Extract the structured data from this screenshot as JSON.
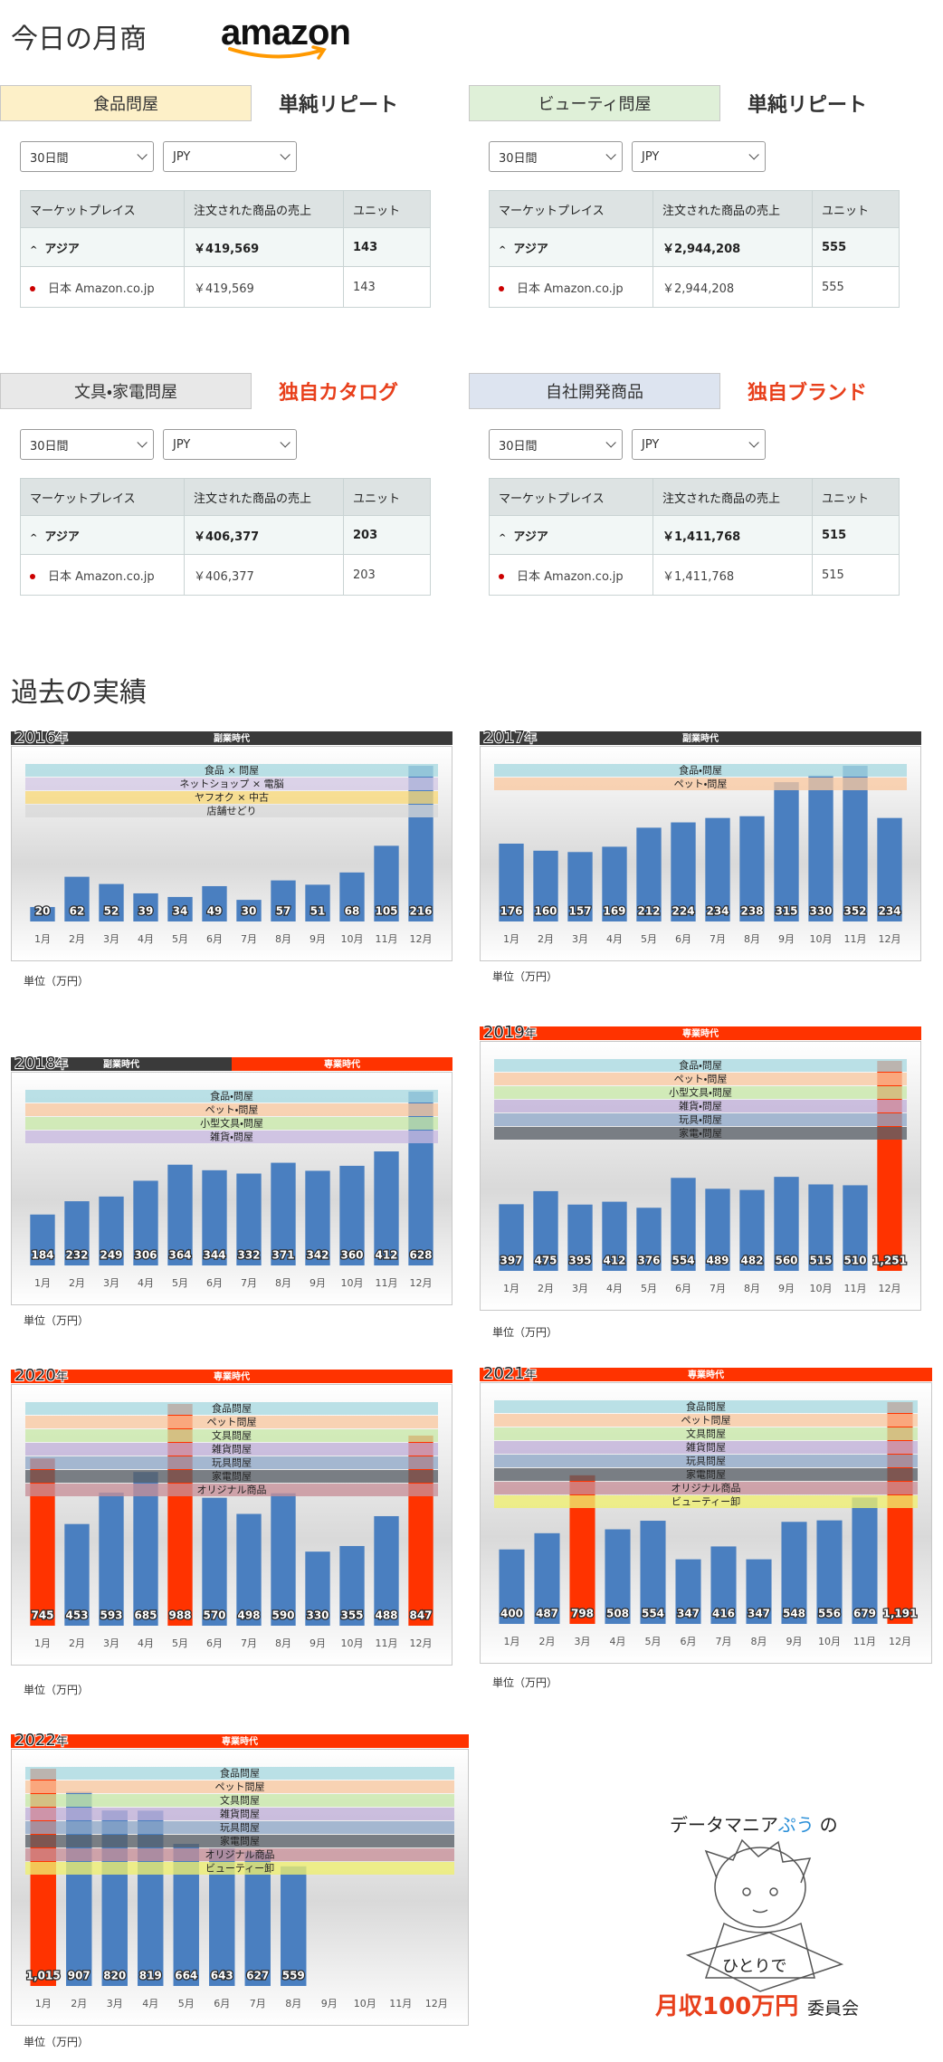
{
  "header": {
    "title": "今日の月商",
    "logo": "amazon"
  },
  "panels": [
    {
      "label": "食品問屋",
      "label_color": "#fdf0c8",
      "tag": "単純リピート",
      "tag_color": "#333333",
      "period": "30日間",
      "currency": "JPY",
      "columns": [
        "マーケットプレイス",
        "注文された商品の売上",
        "ユニット"
      ],
      "rows": [
        [
          "アジア",
          "￥419,569",
          "143"
        ],
        [
          "日本 Amazon.co.jp",
          "￥419,569",
          "143"
        ]
      ]
    },
    {
      "label": "ビューティ問屋",
      "label_color": "#dff0d8",
      "tag": "単純リピート",
      "tag_color": "#333333",
      "period": "30日間",
      "currency": "JPY",
      "columns": [
        "マーケットプレイス",
        "注文された商品の売上",
        "ユニット"
      ],
      "rows": [
        [
          "アジア",
          "￥2,944,208",
          "555"
        ],
        [
          "日本 Amazon.co.jp",
          "￥2,944,208",
          "555"
        ]
      ]
    },
    {
      "label": "文具・家電問屋",
      "label_color": "#e8e8e8",
      "tag": "独自カタログ",
      "tag_color": "#e8401c",
      "period": "30日間",
      "currency": "JPY",
      "columns": [
        "マーケットプレイス",
        "注文された商品の売上",
        "ユニット"
      ],
      "rows": [
        [
          "アジア",
          "￥406,377",
          "203"
        ],
        [
          "日本 Amazon.co.jp",
          "￥406,377",
          "203"
        ]
      ]
    },
    {
      "label": "自社開発商品",
      "label_color": "#dde4f0",
      "tag": "独自ブランド",
      "tag_color": "#e8401c",
      "period": "30日間",
      "currency": "JPY",
      "columns": [
        "マーケットプレイス",
        "注文された商品の売上",
        "ユニット"
      ],
      "rows": [
        [
          "アジア",
          "￥1,411,768",
          "515"
        ],
        [
          "日本 Amazon.co.jp",
          "￥1,411,768",
          "515"
        ]
      ]
    }
  ],
  "history": {
    "title": "過去の実績",
    "unit": "単位（万円）",
    "charts": [
      {
        "type": "bar",
        "year": "2016",
        "suffix": "年",
        "eras": [
          {
            "label": "副業時代",
            "color": "#3a3a3a"
          }
        ],
        "bands": [
          {
            "label": "食品 × 問屋",
            "color": "#a8d8e0"
          },
          {
            "label": "ネットショップ × 電脳",
            "color": "#d4c8e4"
          },
          {
            "label": "ヤフオク × 中古",
            "color": "#f8d878"
          },
          {
            "label": "店舗せどり",
            "color": "#d8d8d8"
          }
        ],
        "categories": [
          "1月",
          "2月",
          "3月",
          "4月",
          "5月",
          "6月",
          "7月",
          "8月",
          "9月",
          "10月",
          "11月",
          "12月"
        ],
        "values": [
          20,
          62,
          52,
          39,
          34,
          49,
          30,
          57,
          51,
          68,
          105,
          216
        ],
        "color": "#4a7fc0"
      },
      {
        "type": "bar",
        "year": "2017",
        "suffix": "年",
        "eras": [
          {
            "label": "副業時代",
            "color": "#3a3a3a"
          }
        ],
        "bands": [
          {
            "label": "食品・問屋",
            "color": "#a8d8e0"
          },
          {
            "label": "ペット・問屋",
            "color": "#f8c8a0"
          }
        ],
        "categories": [
          "1月",
          "2月",
          "3月",
          "4月",
          "5月",
          "6月",
          "7月",
          "8月",
          "9月",
          "10月",
          "11月",
          "12月"
        ],
        "values": [
          176,
          160,
          157,
          169,
          212,
          224,
          234,
          238,
          315,
          330,
          352,
          234
        ],
        "color": "#4a7fc0"
      },
      {
        "type": "bar",
        "year": "2018",
        "suffix": "年",
        "eras": [
          {
            "label": "副業時代",
            "color": "#3a3a3a"
          },
          {
            "label": "専業時代",
            "color": "#ff3300"
          }
        ],
        "bands": [
          {
            "label": "食品・問屋",
            "color": "#a8d8e0"
          },
          {
            "label": "ペット・問屋",
            "color": "#f8c8a0"
          },
          {
            "label": "小型文具・問屋",
            "color": "#c8e8a8"
          },
          {
            "label": "雑貨・問屋",
            "color": "#c8b8e0"
          }
        ],
        "categories": [
          "1月",
          "2月",
          "3月",
          "4月",
          "5月",
          "6月",
          "7月",
          "8月",
          "9月",
          "10月",
          "11月",
          "12月"
        ],
        "values": [
          184,
          232,
          249,
          306,
          364,
          344,
          332,
          371,
          342,
          360,
          412,
          628
        ],
        "color": "#4a7fc0"
      },
      {
        "type": "bar",
        "year": "2019",
        "suffix": "年",
        "eras": [
          {
            "label": "専業時代",
            "color": "#ff3300"
          }
        ],
        "bands": [
          {
            "label": "食品・問屋",
            "color": "#a8d8e0"
          },
          {
            "label": "ペット・問屋",
            "color": "#f8c8a0"
          },
          {
            "label": "小型文具・問屋",
            "color": "#c8e8a8"
          },
          {
            "label": "雑貨・問屋",
            "color": "#c0b0d8"
          },
          {
            "label": "玩具・問屋",
            "color": "#8fa8c8"
          },
          {
            "label": "家電・問屋",
            "color": "#5a6068"
          }
        ],
        "categories": [
          "1月",
          "2月",
          "3月",
          "4月",
          "5月",
          "6月",
          "7月",
          "8月",
          "9月",
          "10月",
          "11月",
          "12月"
        ],
        "values": [
          397,
          475,
          395,
          412,
          376,
          554,
          489,
          482,
          560,
          515,
          510,
          1251
        ],
        "value_labels": [
          "397",
          "475",
          "395",
          "412",
          "376",
          "554",
          "489",
          "482",
          "560",
          "515",
          "510",
          "1,251"
        ],
        "bar_colors": [
          "#4a7fc0",
          "#4a7fc0",
          "#4a7fc0",
          "#4a7fc0",
          "#4a7fc0",
          "#4a7fc0",
          "#4a7fc0",
          "#4a7fc0",
          "#4a7fc0",
          "#4a7fc0",
          "#4a7fc0",
          "#ff3300"
        ]
      },
      {
        "type": "bar",
        "year": "2020",
        "suffix": "年",
        "eras": [
          {
            "label": "専業時代",
            "color": "#ff3300"
          }
        ],
        "bands": [
          {
            "label": "食品問屋",
            "color": "#a8d8e0"
          },
          {
            "label": "ペット問屋",
            "color": "#f8c8a0"
          },
          {
            "label": "文具問屋",
            "color": "#c8e8a8"
          },
          {
            "label": "雑貨問屋",
            "color": "#c0b0d8"
          },
          {
            "label": "玩具問屋",
            "color": "#8fa8c8"
          },
          {
            "label": "家電問屋",
            "color": "#5a6068"
          },
          {
            "label": "オリジナル商品",
            "color": "#c89098"
          }
        ],
        "categories": [
          "1月",
          "2月",
          "3月",
          "4月",
          "5月",
          "6月",
          "7月",
          "8月",
          "9月",
          "10月",
          "11月",
          "12月"
        ],
        "values": [
          745,
          453,
          593,
          685,
          988,
          570,
          498,
          590,
          330,
          355,
          488,
          847
        ],
        "bar_colors": [
          "#ff3300",
          "#4a7fc0",
          "#4a7fc0",
          "#4a7fc0",
          "#ff3300",
          "#4a7fc0",
          "#4a7fc0",
          "#4a7fc0",
          "#4a7fc0",
          "#4a7fc0",
          "#4a7fc0",
          "#ff3300"
        ]
      },
      {
        "type": "bar",
        "year": "2021",
        "suffix": "年",
        "eras": [
          {
            "label": "専業時代",
            "color": "#ff3300"
          }
        ],
        "bands": [
          {
            "label": "食品問屋",
            "color": "#a8d8e0"
          },
          {
            "label": "ペット問屋",
            "color": "#f8c8a0"
          },
          {
            "label": "文具問屋",
            "color": "#c8e8a8"
          },
          {
            "label": "雑貨問屋",
            "color": "#c0b0d8"
          },
          {
            "label": "玩具問屋",
            "color": "#8fa8c8"
          },
          {
            "label": "家電問屋",
            "color": "#5a6068"
          },
          {
            "label": "オリジナル商品",
            "color": "#c89098"
          },
          {
            "label": "ビューティー卸",
            "color": "#f0f070"
          }
        ],
        "categories": [
          "1月",
          "2月",
          "3月",
          "4月",
          "5月",
          "6月",
          "7月",
          "8月",
          "9月",
          "10月",
          "11月",
          "12月"
        ],
        "values": [
          400,
          487,
          798,
          508,
          554,
          347,
          416,
          347,
          548,
          556,
          679,
          1191
        ],
        "value_labels": [
          "400",
          "487",
          "798",
          "508",
          "554",
          "347",
          "416",
          "347",
          "548",
          "556",
          "679",
          "1,191"
        ],
        "bar_colors": [
          "#4a7fc0",
          "#4a7fc0",
          "#ff3300",
          "#4a7fc0",
          "#4a7fc0",
          "#4a7fc0",
          "#4a7fc0",
          "#4a7fc0",
          "#4a7fc0",
          "#4a7fc0",
          "#4a7fc0",
          "#ff3300"
        ]
      },
      {
        "type": "bar",
        "year": "2022",
        "suffix": "年",
        "eras": [
          {
            "label": "専業時代",
            "color": "#ff3300"
          }
        ],
        "bands": [
          {
            "label": "食品問屋",
            "color": "#a8d8e0"
          },
          {
            "label": "ペット問屋",
            "color": "#f8c8a0"
          },
          {
            "label": "文具問屋",
            "color": "#c8e8a8"
          },
          {
            "label": "雑貨問屋",
            "color": "#c0b0d8"
          },
          {
            "label": "玩具問屋",
            "color": "#8fa8c8"
          },
          {
            "label": "家電問屋",
            "color": "#5a6068"
          },
          {
            "label": "オリジナル商品",
            "color": "#c89098"
          },
          {
            "label": "ビューティー卸",
            "color": "#f0f070"
          }
        ],
        "categories": [
          "1月",
          "2月",
          "3月",
          "4月",
          "5月",
          "6月",
          "7月",
          "8月",
          "9月",
          "10月",
          "11月",
          "12月"
        ],
        "values": [
          1015,
          907,
          820,
          819,
          664,
          643,
          627,
          559,
          null,
          null,
          null,
          null
        ],
        "value_labels": [
          "1,015",
          "907",
          "820",
          "819",
          "664",
          "643",
          "627",
          "559",
          null,
          null,
          null,
          null
        ],
        "bar_colors": [
          "#ff3300",
          "#4a7fc0",
          "#4a7fc0",
          "#4a7fc0",
          "#4a7fc0",
          "#4a7fc0",
          "#4a7fc0",
          "#4a7fc0",
          "#4a7fc0",
          "#4a7fc0",
          "#4a7fc0",
          "#4a7fc0"
        ]
      }
    ]
  },
  "footer": {
    "lead": "データマニア",
    "name": "ぷう",
    "particle": "の",
    "line2": "ひとりで",
    "big": "月収100万円",
    "small": "委員会"
  }
}
